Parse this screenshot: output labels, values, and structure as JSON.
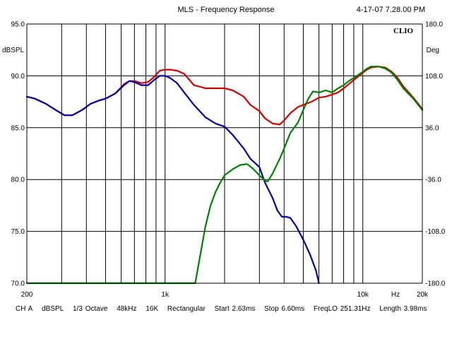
{
  "header": {
    "title": "MLS - Frequency Response",
    "timestamp": "4-17-07 7.28.00 PM"
  },
  "brand": "CLIO",
  "footer": [
    "CH A",
    "dBSPL",
    "1/3 Octave",
    "48kHz",
    "16K",
    "Rectangular",
    "Start 2.63ms",
    "Stop 6.60ms",
    "FreqLO 251.31Hz",
    "Length 3.98ms"
  ],
  "chart_data": {
    "type": "line",
    "title": "MLS - Frequency Response",
    "xlabel": "Hz",
    "ylabel": "dBSPL",
    "y2label": "Deg",
    "xscale": "log",
    "xlim": [
      200,
      20000
    ],
    "ylim": [
      70,
      95
    ],
    "y2lim": [
      -180,
      180
    ],
    "x_tick_labels": [
      {
        "value": 200,
        "label": "200"
      },
      {
        "value": 1000,
        "label": "1k"
      },
      {
        "value": 10000,
        "label": "10k"
      },
      {
        "value": 20000,
        "label": "20k"
      }
    ],
    "y_ticks": [
      95.0,
      90.0,
      85.0,
      80.0,
      75.0,
      70.0
    ],
    "y_tick_labels": [
      "95.0",
      "90.0",
      "85.0",
      "80.0",
      "75.0",
      "70.0"
    ],
    "y2_ticks": [
      180.0,
      108.0,
      36.0,
      -36.0,
      -108.0,
      -180.0
    ],
    "y2_tick_labels": [
      "180.0",
      "108.0",
      "36.0",
      "-36.0",
      "-108.0",
      "-180.0"
    ],
    "grid": true,
    "series": [
      {
        "color": "#d00000",
        "x": [
          200,
          220,
          250,
          280,
          310,
          340,
          380,
          420,
          460,
          500,
          560,
          620,
          660,
          700,
          760,
          820,
          880,
          940,
          1000,
          1060,
          1150,
          1250,
          1400,
          1600,
          1800,
          2000,
          2200,
          2500,
          2700,
          3000,
          3200,
          3500,
          3800,
          4000,
          4300,
          4700,
          5000,
          5500,
          6000,
          6500,
          7000,
          7500,
          8000,
          8500,
          9000,
          10000,
          10500,
          11000,
          12000,
          13000,
          14000,
          15000,
          16000,
          18000,
          20000
        ],
        "y": [
          88.0,
          87.8,
          87.3,
          86.7,
          86.2,
          86.2,
          86.7,
          87.3,
          87.6,
          87.8,
          88.3,
          89.2,
          89.5,
          89.5,
          89.3,
          89.4,
          89.9,
          90.5,
          90.6,
          90.6,
          90.5,
          90.2,
          89.1,
          88.8,
          88.8,
          88.8,
          88.6,
          88.0,
          87.2,
          86.6,
          85.9,
          85.4,
          85.3,
          85.7,
          86.4,
          87.0,
          87.2,
          87.5,
          87.9,
          88.0,
          88.2,
          88.4,
          88.8,
          89.2,
          89.6,
          90.3,
          90.6,
          90.8,
          90.9,
          90.8,
          90.4,
          89.8,
          89.0,
          87.9,
          86.8
        ]
      },
      {
        "color": "#0000a0",
        "x": [
          200,
          220,
          250,
          280,
          310,
          340,
          380,
          420,
          460,
          500,
          560,
          620,
          660,
          700,
          760,
          820,
          880,
          940,
          1000,
          1060,
          1150,
          1250,
          1400,
          1600,
          1800,
          2000,
          2200,
          2500,
          2700,
          3000,
          3200,
          3500,
          3700,
          3900,
          4100,
          4300,
          4600,
          5000,
          5400,
          5800,
          6000
        ],
        "y": [
          88.0,
          87.8,
          87.3,
          86.7,
          86.2,
          86.2,
          86.7,
          87.3,
          87.6,
          87.8,
          88.3,
          89.1,
          89.5,
          89.4,
          89.1,
          89.1,
          89.6,
          90.0,
          90.0,
          89.8,
          89.3,
          88.4,
          87.2,
          86.0,
          85.4,
          85.1,
          84.3,
          83.0,
          82.0,
          81.2,
          79.7,
          78.2,
          77.0,
          76.4,
          76.4,
          76.3,
          75.5,
          74.2,
          72.8,
          71.2,
          70.0
        ]
      },
      {
        "color": "#008000",
        "x": [
          200,
          500,
          1000,
          1420,
          1500,
          1600,
          1700,
          1800,
          1900,
          2000,
          2200,
          2400,
          2600,
          2800,
          3000,
          3200,
          3300,
          3500,
          3800,
          4000,
          4300,
          4700,
          5000,
          5300,
          5600,
          6000,
          6500,
          7000,
          7500,
          8000,
          8500,
          9000,
          9500,
          10000,
          10500,
          11000,
          12000,
          13000,
          14000,
          15000,
          16000,
          18000,
          20000
        ],
        "y": [
          70.0,
          70.0,
          70.0,
          70.0,
          72.5,
          75.5,
          77.5,
          78.8,
          79.7,
          80.4,
          81.0,
          81.4,
          81.5,
          81.0,
          80.4,
          79.9,
          79.8,
          80.6,
          82.0,
          83.0,
          84.5,
          85.5,
          86.7,
          87.8,
          88.5,
          88.4,
          88.6,
          88.4,
          88.8,
          89.1,
          89.5,
          89.8,
          90.1,
          90.4,
          90.7,
          90.9,
          90.9,
          90.7,
          90.3,
          89.6,
          88.8,
          87.8,
          86.7
        ]
      }
    ]
  }
}
